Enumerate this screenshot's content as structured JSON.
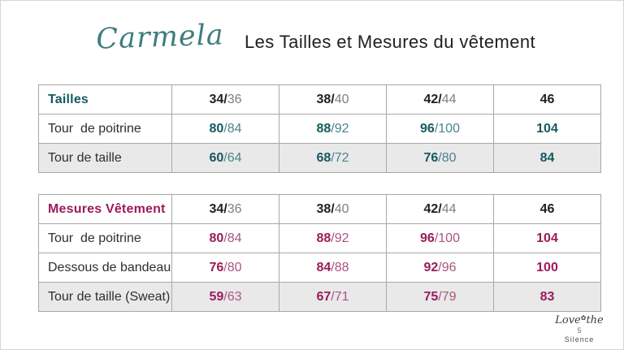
{
  "header": {
    "brand": "Carmela",
    "title": "Les Tailles et Mesures du vêtement"
  },
  "tables": [
    {
      "id": "tailles",
      "header_label": "Tailles",
      "accent_dark": "#155a60",
      "accent_light": "#4a848a",
      "size_columns": [
        [
          "34",
          "36"
        ],
        [
          "38",
          "40"
        ],
        [
          "42",
          "44"
        ],
        [
          "46",
          ""
        ]
      ],
      "rows": [
        {
          "label": "Tour  de poitrine",
          "shaded": false,
          "values": [
            [
              "80",
              "84"
            ],
            [
              "88",
              "92"
            ],
            [
              "96",
              "100"
            ],
            [
              "104",
              ""
            ]
          ]
        },
        {
          "label": "Tour de taille",
          "shaded": true,
          "values": [
            [
              "60",
              "64"
            ],
            [
              "68",
              "72"
            ],
            [
              "76",
              "80"
            ],
            [
              "84",
              ""
            ]
          ]
        }
      ]
    },
    {
      "id": "mesures-vetement",
      "header_label": "Mesures Vêtement",
      "accent_dark": "#9c1b5c",
      "accent_light": "#aa5480",
      "size_columns": [
        [
          "34",
          "36"
        ],
        [
          "38",
          "40"
        ],
        [
          "42",
          "44"
        ],
        [
          "46",
          ""
        ]
      ],
      "rows": [
        {
          "label": "Tour  de poitrine",
          "shaded": false,
          "values": [
            [
              "80",
              "84"
            ],
            [
              "88",
              "92"
            ],
            [
              "96",
              "100"
            ],
            [
              "104",
              ""
            ]
          ]
        },
        {
          "label": "Dessous de bandeau",
          "shaded": false,
          "values": [
            [
              "76",
              "80"
            ],
            [
              "84",
              "88"
            ],
            [
              "92",
              "96"
            ],
            [
              "100",
              ""
            ]
          ]
        },
        {
          "label": "Tour de taille (Sweat)",
          "shaded": true,
          "values": [
            [
              "59",
              "63"
            ],
            [
              "67",
              "71"
            ],
            [
              "75",
              "79"
            ],
            [
              "83",
              ""
            ]
          ]
        }
      ]
    }
  ],
  "footer": {
    "logo_love": "Love",
    "flower_icon": "✿",
    "logo_the": "the",
    "page_number": "5",
    "logo_silence": "Silence"
  },
  "colors": {
    "teal": "#155a60",
    "teal_light": "#4a848a",
    "magenta": "#9c1b5c",
    "magenta_light": "#aa5480",
    "header_number_strong": "#1f1f1f",
    "header_number_light": "#7f7f7f",
    "shaded_row": "#e9e9e9",
    "table_border": "#a8a8a8",
    "brand_teal": "#3e7c7e"
  }
}
